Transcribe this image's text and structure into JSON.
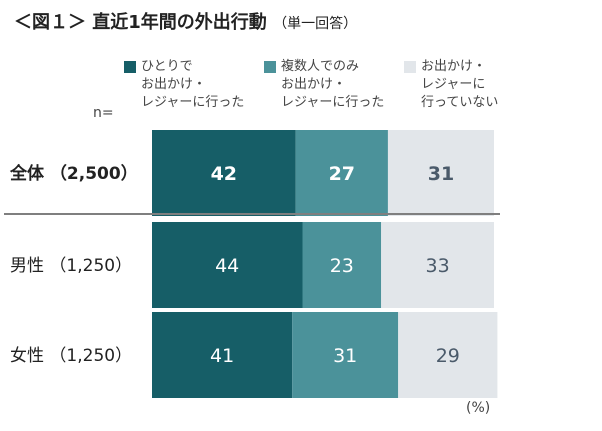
{
  "title": "＜図１＞ 直近1年間の外出行動",
  "subtitle": "（単一回答）",
  "n_label": "n=",
  "unit_label": "(%)",
  "colors": {
    "series1": "#165e67",
    "series2": "#4b929a",
    "series3": "#e2e6ea",
    "separator": "#7f7f7f"
  },
  "chart_data": {
    "type": "bar",
    "orientation": "horizontal",
    "stacked": true,
    "percent": true,
    "categories": [
      "全体 （2,500）",
      "男性 （1,250）",
      "女性 （1,250）"
    ],
    "category_bold": [
      true,
      false,
      false
    ],
    "series": [
      {
        "name": "ひとりで\nお出かけ・\nレジャーに行った",
        "values": [
          42,
          44,
          41
        ]
      },
      {
        "name": "複数人でのみ\nお出かけ・\nレジャーに行った",
        "values": [
          27,
          23,
          31
        ]
      },
      {
        "name": "お出かけ・\nレジャーに\n行っていない",
        "values": [
          31,
          33,
          29
        ]
      }
    ],
    "xlim": [
      0,
      100
    ],
    "legend": "top"
  }
}
